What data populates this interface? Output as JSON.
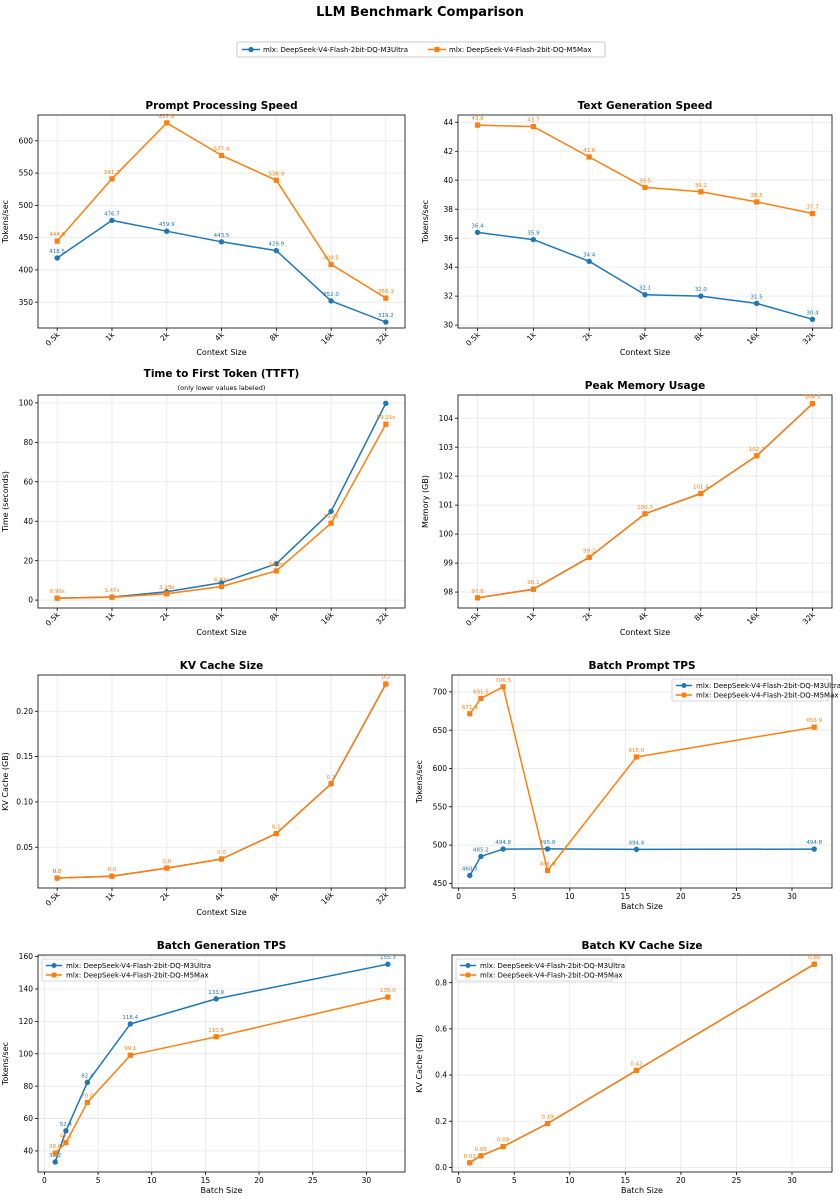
{
  "figure": {
    "title": "LLM Benchmark Comparison",
    "legend": [
      {
        "label": "mlx: DeepSeek-V4-Flash-2bit-DQ-M3Ultra",
        "color": "#1f77b4",
        "marker": "circle"
      },
      {
        "label": "mlx: DeepSeek-V4-Flash-2bit-DQ-M5Max",
        "color": "#ff7f0e",
        "marker": "square"
      }
    ]
  },
  "chart_data": [
    {
      "type": "line",
      "title": "Prompt Processing Speed",
      "xlabel": "Context Size",
      "ylabel": "Tokens/sec",
      "categories": [
        "0.5k",
        "1k",
        "2k",
        "4k",
        "8k",
        "16k",
        "32k"
      ],
      "ylim": [
        310,
        640
      ],
      "yticks": [
        350,
        400,
        450,
        500,
        550,
        600
      ],
      "grid": true,
      "series": [
        {
          "name": "mlx: DeepSeek-V4-Flash-2bit-DQ-M3Ultra",
          "color": "#1f77b4",
          "marker": "circle",
          "values": [
            418.5,
            476.7,
            459.9,
            443.5,
            429.9,
            352.0,
            319.2
          ],
          "labels": [
            "418.5",
            "476.7",
            "459.9",
            "443.5",
            "429.9",
            "352.0",
            "319.2"
          ]
        },
        {
          "name": "mlx: DeepSeek-V4-Flash-2bit-DQ-M5Max",
          "color": "#ff7f0e",
          "marker": "square",
          "values": [
            444.6,
            541.1,
            627.8,
            577.4,
            538.9,
            408.5,
            356.3
          ],
          "labels": [
            "444.6",
            "541.1",
            "627.8",
            "577.4",
            "538.9",
            "408.5",
            "356.3"
          ]
        }
      ]
    },
    {
      "type": "line",
      "title": "Text Generation Speed",
      "xlabel": "Context Size",
      "ylabel": "Tokens/sec",
      "categories": [
        "0.5k",
        "1k",
        "2k",
        "4k",
        "8k",
        "16k",
        "32k"
      ],
      "ylim": [
        29.8,
        44.5
      ],
      "yticks": [
        30,
        32,
        34,
        36,
        38,
        40,
        42,
        44
      ],
      "grid": true,
      "series": [
        {
          "name": "mlx: DeepSeek-V4-Flash-2bit-DQ-M3Ultra",
          "color": "#1f77b4",
          "marker": "circle",
          "values": [
            36.4,
            35.9,
            34.4,
            32.1,
            32.0,
            31.5,
            30.4
          ],
          "labels": [
            "36.4",
            "35.9",
            "34.4",
            "32.1",
            "32.0",
            "31.5",
            "30.4"
          ]
        },
        {
          "name": "mlx: DeepSeek-V4-Flash-2bit-DQ-M5Max",
          "color": "#ff7f0e",
          "marker": "square",
          "values": [
            43.8,
            43.7,
            41.6,
            39.5,
            39.2,
            38.5,
            37.7
          ],
          "labels": [
            "43.8",
            "43.7",
            "41.6",
            "39.5",
            "39.2",
            "38.5",
            "37.7"
          ]
        }
      ]
    },
    {
      "type": "line",
      "title": "Time to First Token (TTFT)",
      "subtitle": "(only lower values labeled)",
      "xlabel": "Context Size",
      "ylabel": "Time (seconds)",
      "categories": [
        "0.5k",
        "1k",
        "2k",
        "4k",
        "8k",
        "16k",
        "32k"
      ],
      "ylim": [
        -4,
        104
      ],
      "yticks": [
        0,
        20,
        40,
        60,
        80,
        100
      ],
      "grid": true,
      "series": [
        {
          "name": "mlx: DeepSeek-V4-Flash-2bit-DQ-M3Ultra",
          "color": "#1f77b4",
          "marker": "circle",
          "values": [
            1.0,
            1.6,
            4.2,
            8.8,
            18.4,
            45.0,
            99.8
          ],
          "labels": [
            "",
            "",
            "",
            "",
            "",
            "",
            ""
          ]
        },
        {
          "name": "mlx: DeepSeek-V4-Flash-2bit-DQ-M5Max",
          "color": "#ff7f0e",
          "marker": "square",
          "values": [
            0.99,
            1.47,
            3.19,
            6.9,
            14.8,
            39.0,
            89.2
          ],
          "labels": [
            "0.99s",
            "1.47s",
            "3.19s",
            "6.91s",
            "14.8s",
            "39.0s",
            "89.21s"
          ]
        }
      ]
    },
    {
      "type": "line",
      "title": "Peak Memory Usage",
      "xlabel": "Context Size",
      "ylabel": "Memory (GB)",
      "categories": [
        "0.5k",
        "1k",
        "2k",
        "4k",
        "8k",
        "16k",
        "32k"
      ],
      "ylim": [
        97.45,
        104.8
      ],
      "yticks": [
        98,
        99,
        100,
        101,
        102,
        103,
        104
      ],
      "grid": true,
      "series": [
        {
          "name": "mlx: DeepSeek-V4-Flash-2bit-DQ-M3Ultra",
          "color": "#1f77b4",
          "marker": "circle",
          "values": [
            97.8,
            98.1,
            99.2,
            100.7,
            101.4,
            102.7,
            104.5
          ],
          "labels": [
            "",
            "",
            "",
            "",
            "",
            "",
            ""
          ]
        },
        {
          "name": "mlx: DeepSeek-V4-Flash-2bit-DQ-M5Max",
          "color": "#ff7f0e",
          "marker": "square",
          "values": [
            97.8,
            98.1,
            99.2,
            100.7,
            101.4,
            102.7,
            104.5
          ],
          "labels": [
            "97.8",
            "98.1",
            "99.2",
            "100.7",
            "101.4",
            "102.7",
            "104.5"
          ]
        }
      ]
    },
    {
      "type": "line",
      "title": "KV Cache Size",
      "xlabel": "Context Size",
      "ylabel": "KV Cache (GB)",
      "categories": [
        "0.5k",
        "1k",
        "2k",
        "4k",
        "8k",
        "16k",
        "32k"
      ],
      "ylim": [
        0.005,
        0.24
      ],
      "yticks": [
        0.05,
        0.1,
        0.15,
        0.2
      ],
      "yticklabels": [
        "0.05",
        "0.10",
        "0.15",
        "0.20"
      ],
      "grid": true,
      "series": [
        {
          "name": "mlx: DeepSeek-V4-Flash-2bit-DQ-M3Ultra",
          "color": "#1f77b4",
          "marker": "circle",
          "values": [
            0.016,
            0.018,
            0.027,
            0.037,
            0.065,
            0.12,
            0.23
          ],
          "labels": [
            "0.0",
            "",
            "",
            "",
            "",
            "",
            ""
          ]
        },
        {
          "name": "mlx: DeepSeek-V4-Flash-2bit-DQ-M5Max",
          "color": "#ff7f0e",
          "marker": "square",
          "values": [
            0.016,
            0.018,
            0.027,
            0.037,
            0.065,
            0.12,
            0.23
          ],
          "labels": [
            "0.0",
            "0.0",
            "0.0",
            "0.0",
            "0.1",
            "0.1",
            "0.2"
          ]
        }
      ]
    },
    {
      "type": "line",
      "title": "Batch Prompt TPS",
      "xlabel": "Batch Size",
      "ylabel": "Tokens/sec",
      "xlim": [
        -0.6,
        33.6
      ],
      "xticks": [
        0,
        5,
        10,
        15,
        20,
        25,
        30
      ],
      "ylim": [
        444,
        722
      ],
      "yticks": [
        450,
        500,
        550,
        600,
        650,
        700
      ],
      "grid": true,
      "legend": "top-right",
      "series": [
        {
          "name": "mlx: DeepSeek-V4-Flash-2bit-DQ-M3Ultra",
          "color": "#1f77b4",
          "marker": "circle",
          "x": [
            1,
            2,
            4,
            8,
            16,
            32
          ],
          "values": [
            460.3,
            485.2,
            494.8,
            495.0,
            494.4,
            494.8
          ],
          "labels": [
            "460.3",
            "485.2",
            "494.8",
            "495.0",
            "494.4",
            "494.8"
          ]
        },
        {
          "name": "mlx: DeepSeek-V4-Flash-2bit-DQ-M5Max",
          "color": "#ff7f0e",
          "marker": "square",
          "x": [
            1,
            2,
            4,
            8,
            16,
            32
          ],
          "values": [
            671.4,
            691.5,
            706.5,
            466.9,
            615.0,
            653.9
          ],
          "labels": [
            "671.4",
            "691.5",
            "706.5",
            "466.9",
            "615.0",
            "653.9"
          ]
        }
      ]
    },
    {
      "type": "line",
      "title": "Batch Generation TPS",
      "xlabel": "Batch Size",
      "ylabel": "Tokens/sec",
      "xlim": [
        -0.6,
        33.6
      ],
      "xticks": [
        0,
        5,
        10,
        15,
        20,
        25,
        30
      ],
      "ylim": [
        27,
        161
      ],
      "yticks": [
        40,
        60,
        80,
        100,
        120,
        140,
        160
      ],
      "grid": true,
      "legend": "top-left",
      "series": [
        {
          "name": "mlx: DeepSeek-V4-Flash-2bit-DQ-M3Ultra",
          "color": "#1f77b4",
          "marker": "circle",
          "x": [
            1,
            2,
            4,
            8,
            16,
            32
          ],
          "values": [
            33.2,
            52.4,
            82.4,
            118.4,
            133.9,
            155.3
          ],
          "labels": [
            "33.2",
            "52.4",
            "82.4",
            "118.4",
            "133.9",
            "155.3"
          ]
        },
        {
          "name": "mlx: DeepSeek-V4-Flash-2bit-DQ-M5Max",
          "color": "#ff7f0e",
          "marker": "square",
          "x": [
            1,
            2,
            4,
            8,
            16,
            32
          ],
          "values": [
            38.6,
            45.1,
            70.0,
            99.1,
            110.5,
            135.0
          ],
          "labels": [
            "38.6",
            "45.1",
            "70.0",
            "99.1",
            "110.5",
            "135.0"
          ]
        }
      ]
    },
    {
      "type": "line",
      "title": "Batch KV Cache Size",
      "xlabel": "Batch Size",
      "ylabel": "KV Cache (GB)",
      "xlim": [
        -0.6,
        33.6
      ],
      "xticks": [
        0,
        5,
        10,
        15,
        20,
        25,
        30
      ],
      "ylim": [
        -0.02,
        0.92
      ],
      "yticks": [
        0.0,
        0.2,
        0.4,
        0.6,
        0.8
      ],
      "yticklabels": [
        "0.0",
        "0.2",
        "0.4",
        "0.6",
        "0.8"
      ],
      "grid": true,
      "legend": "top-left",
      "series": [
        {
          "name": "mlx: DeepSeek-V4-Flash-2bit-DQ-M3Ultra",
          "color": "#1f77b4",
          "marker": "circle",
          "x": [
            1,
            2,
            4,
            8,
            16,
            32
          ],
          "values": [
            0.02,
            0.05,
            0.09,
            0.19,
            0.42,
            0.88
          ],
          "labels": [
            "",
            "",
            "",
            "",
            "",
            ""
          ]
        },
        {
          "name": "mlx: DeepSeek-V4-Flash-2bit-DQ-M5Max",
          "color": "#ff7f0e",
          "marker": "square",
          "x": [
            1,
            2,
            4,
            8,
            16,
            32
          ],
          "values": [
            0.02,
            0.05,
            0.09,
            0.19,
            0.42,
            0.88
          ],
          "labels": [
            "0.02",
            "0.05",
            "0.09",
            "0.19",
            "0.42",
            "0.88"
          ]
        }
      ]
    }
  ]
}
